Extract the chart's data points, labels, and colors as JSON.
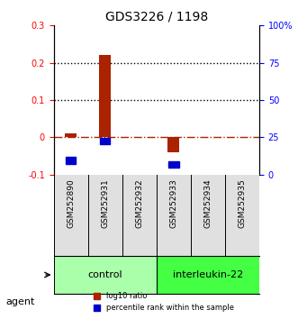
{
  "title": "GDS3226 / 1198",
  "samples": [
    "GSM252890",
    "GSM252931",
    "GSM252932",
    "GSM252933",
    "GSM252934",
    "GSM252935"
  ],
  "log10_ratio": [
    0.01,
    0.22,
    0.0,
    -0.04,
    0.0,
    0.0
  ],
  "percentile_rank": [
    0.095,
    0.225,
    0.0,
    0.065,
    0.0,
    0.0
  ],
  "ylim_left": [
    -0.1,
    0.3
  ],
  "ylim_right": [
    0,
    100
  ],
  "yticks_left": [
    -0.1,
    0.0,
    0.1,
    0.2,
    0.3
  ],
  "yticks_right": [
    0,
    25,
    50,
    75,
    100
  ],
  "ytick_labels_left": [
    "-0.1",
    "0",
    "0.1",
    "0.2",
    "0.3"
  ],
  "ytick_labels_right": [
    "0",
    "25",
    "50",
    "75",
    "100%"
  ],
  "hlines_dotted": [
    0.1,
    0.2
  ],
  "hline_dashdot": 0.0,
  "groups": [
    {
      "label": "control",
      "samples": [
        "GSM252890",
        "GSM252931",
        "GSM252932"
      ],
      "color": "#aaffaa"
    },
    {
      "label": "interleukin-22",
      "samples": [
        "GSM252933",
        "GSM252934",
        "GSM252935"
      ],
      "color": "#44ff44"
    }
  ],
  "bar_color": "#aa2200",
  "square_color": "#0000cc",
  "legend_items": [
    {
      "color": "#aa2200",
      "label": "log10 ratio"
    },
    {
      "color": "#0000cc",
      "label": "percentile rank within the sample"
    }
  ],
  "background_color": "#ffffff",
  "plot_bg": "#ffffff"
}
